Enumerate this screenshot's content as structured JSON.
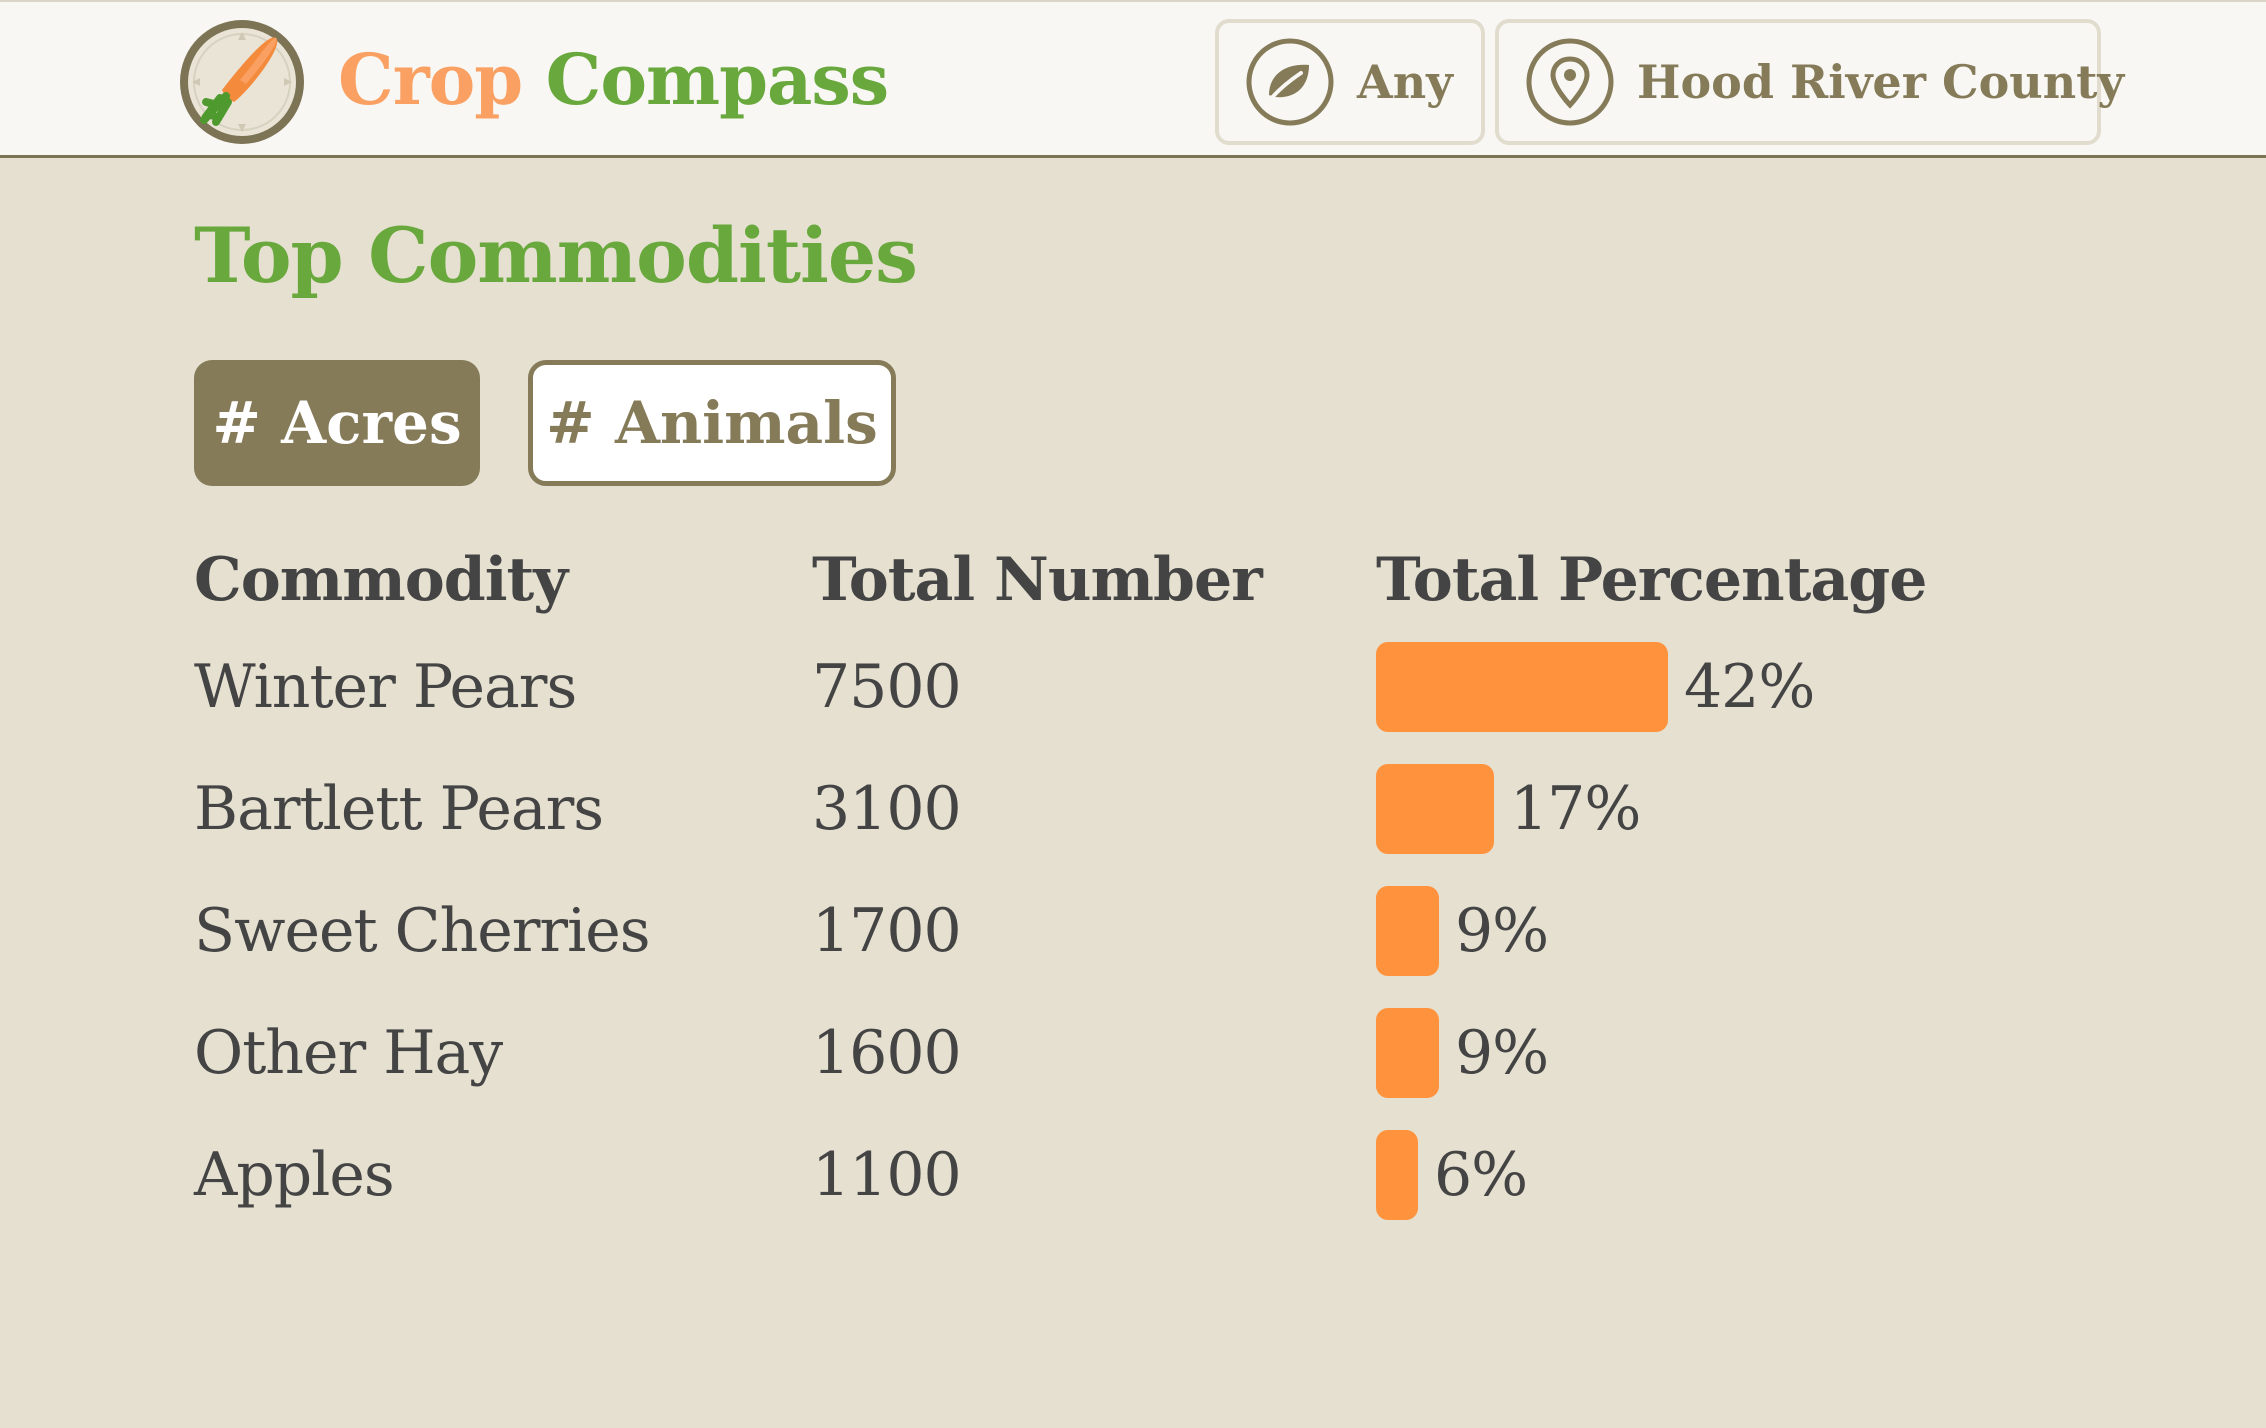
{
  "header": {
    "brand_part1": "Crop",
    "brand_part2": "Compass",
    "crop_filter": {
      "label": "Any",
      "icon": "leaf-icon"
    },
    "location_filter": {
      "label": "Hood River County",
      "icon": "map-pin-icon"
    }
  },
  "main": {
    "title": "Top Commodities",
    "toggles": [
      {
        "label": "# Acres",
        "active": true
      },
      {
        "label": "# Animals",
        "active": false
      }
    ],
    "columns": [
      "Commodity",
      "Total Number",
      "Total Percentage"
    ],
    "rows": [
      {
        "commodity": "Winter Pears",
        "total": "7500",
        "percent_label": "42%",
        "percent": 42
      },
      {
        "commodity": "Bartlett Pears",
        "total": "3100",
        "percent_label": "17%",
        "percent": 17
      },
      {
        "commodity": "Sweet Cherries",
        "total": "1700",
        "percent_label": "9%",
        "percent": 9
      },
      {
        "commodity": "Other Hay",
        "total": "1600",
        "percent_label": "9%",
        "percent": 9
      },
      {
        "commodity": "Apples",
        "total": "1100",
        "percent_label": "6%",
        "percent": 6
      }
    ]
  },
  "colors": {
    "accent_green": "#68a83c",
    "accent_orange": "#f9a062",
    "bar_orange": "#ff923c",
    "olive": "#857b59",
    "background": "#e5e0d0"
  }
}
